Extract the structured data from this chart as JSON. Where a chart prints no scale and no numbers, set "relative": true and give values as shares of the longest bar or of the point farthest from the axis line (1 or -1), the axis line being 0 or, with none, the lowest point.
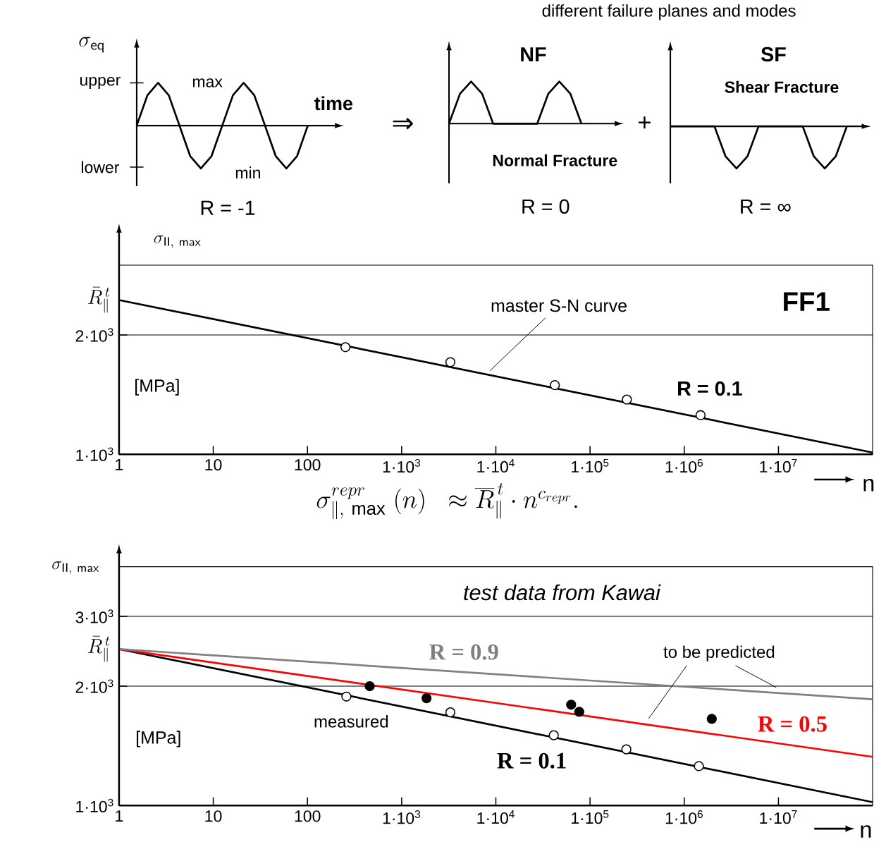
{
  "chart_data": [
    {
      "type": "line",
      "ylabel": "\\sigma_{\\mathsf{eq}}",
      "xlabel": "time",
      "color": "#000000",
      "relative": true,
      "categories": [
        null,
        null,
        null,
        null,
        null,
        null,
        null,
        null,
        null,
        null,
        null,
        null,
        null,
        null,
        null,
        null,
        null
      ],
      "values": [
        0,
        0.71,
        1,
        0.71,
        0,
        -0.71,
        -1,
        -0.71,
        0,
        0.71,
        1,
        0.71,
        0,
        -0.71,
        -1,
        -0.71,
        0
      ],
      "annotations": [
        "upper",
        "lower",
        "max",
        "min",
        "R = -1",
        "⇒"
      ]
    },
    {
      "type": "line",
      "title": "NF",
      "subtitle": "Normal Fracture",
      "color": "#000000",
      "relative": true,
      "categories": [
        null,
        null,
        null,
        null,
        null,
        null,
        null,
        null,
        null,
        null,
        null,
        null,
        null
      ],
      "values": [
        0,
        0.71,
        1,
        0.71,
        0,
        0,
        0,
        0,
        0,
        0.71,
        1,
        0.71,
        0
      ],
      "annotations": [
        "R = 0",
        "+"
      ]
    },
    {
      "type": "line",
      "title": "SF",
      "subtitle": "Shear Fracture",
      "color": "#000000",
      "relative": true,
      "categories": [
        null,
        null,
        null,
        null,
        null,
        null,
        null,
        null,
        null,
        null,
        null,
        null,
        null,
        null,
        null,
        null,
        null
      ],
      "values": [
        0,
        0,
        0,
        0,
        0,
        -0.71,
        -1,
        -0.71,
        0,
        0,
        0,
        0,
        0,
        -0.71,
        -1,
        -0.71,
        0
      ],
      "annotations": [
        "R = ∞",
        "different failure planes and modes"
      ]
    },
    {
      "type": "line",
      "title": "FF1",
      "xlabel": "n",
      "ylabel": "\\sigma_{\\mathsf{II,\\ max}}",
      "log": "xy",
      "grid": "y",
      "xlim": [
        1,
        100000000
      ],
      "ylim": [
        1000,
        3000
      ],
      "xticks": [
        1,
        10,
        100,
        {
          "value": 1000,
          "label": "1·10$^{3}$"
        },
        {
          "value": 10000,
          "label": "1·10$^{4}$"
        },
        {
          "value": 100000,
          "label": "1·10$^{5}$"
        },
        {
          "value": 1000000,
          "label": "1·10$^{6}$"
        },
        {
          "value": 10000000,
          "label": "1·10$^{7}$"
        }
      ],
      "yticks": [
        {
          "value": 1000,
          "label": "1·10$^{3}$"
        },
        {
          "value": 2000,
          "label": "2·10$^{3}$"
        }
      ],
      "annotations": [
        {
          "text": "\\bar{R}^{\\,t}_{\\parallel}",
          "x": 1,
          "y": 2450
        },
        "master S-N curve",
        "[MPa]"
      ],
      "series": [
        {
          "name": "R = 0.1",
          "type": "line",
          "color": "#000000",
          "x": [
            1,
            100000000
          ],
          "values": [
            2450,
            1010
          ]
        },
        {
          "type": "scatter",
          "marker": "circle",
          "color": "#ffffff",
          "x": [
            253,
            3290,
            42300,
            246000,
            1490000
          ],
          "values": [
            1863,
            1708,
            1494,
            1374,
            1255
          ]
        }
      ]
    },
    {
      "type": "line",
      "title": "test data from Kawai",
      "xlabel": "n",
      "ylabel": "\\sigma_{\\mathsf{II,\\ max}}",
      "log": "xy",
      "grid": "y",
      "xlim": [
        1,
        100000000
      ],
      "ylim": [
        1000,
        4000
      ],
      "xticks": [
        1,
        10,
        100,
        {
          "value": 1000,
          "label": "1·10$^{3}$"
        },
        {
          "value": 10000,
          "label": "1·10$^{4}$"
        },
        {
          "value": 100000,
          "label": "1·10$^{5}$"
        },
        {
          "value": 1000000,
          "label": "1·10$^{6}$"
        },
        {
          "value": 10000000,
          "label": "1·10$^{7}$"
        }
      ],
      "yticks": [
        {
          "value": 1000,
          "label": "1·10$^{3}$"
        },
        {
          "value": 2000,
          "label": "2·10$^{3}$"
        },
        {
          "value": 3000,
          "label": "3·10$^{3}$"
        }
      ],
      "annotations": [
        "\\sigma^{repr}_{\\parallel,\\ \\max}\\ (n)\\ \\ \\approx \\overline{R}^{\\,t}_{\\parallel}\\cdot n^{c_{repr}}.",
        {
          "text": "\\bar{R}^{\\,t}_{\\parallel}",
          "x": 1,
          "y": 2480
        },
        "to be predicted",
        "measured",
        "[MPa]"
      ],
      "series": [
        {
          "name": "R = 0.1",
          "type": "line",
          "color": "#000000",
          "x": [
            1,
            100000000
          ],
          "values": [
            2480,
            1020
          ]
        },
        {
          "name": "R = 0.5",
          "type": "line",
          "color": "#ff0000",
          "x": [
            1,
            100000000
          ],
          "values": [
            2480,
            1327
          ]
        },
        {
          "name": "R = 0.9",
          "type": "line",
          "color": "#808080",
          "x": [
            1,
            100000000
          ],
          "values": [
            2480,
            1853
          ]
        },
        {
          "type": "scatter",
          "marker": "circle",
          "color": "#ffffff",
          "x": [
            259,
            3290,
            41200,
            243000,
            1430000
          ],
          "values": [
            1883,
            1718,
            1504,
            1386,
            1257
          ]
        },
        {
          "type": "scatter",
          "marker": "circle",
          "color": "#000000",
          "x": [
            458,
            1837,
            63000,
            76800,
            1960000
          ],
          "values": [
            2000,
            1865,
            1796,
            1723,
            1654
          ]
        }
      ]
    }
  ]
}
